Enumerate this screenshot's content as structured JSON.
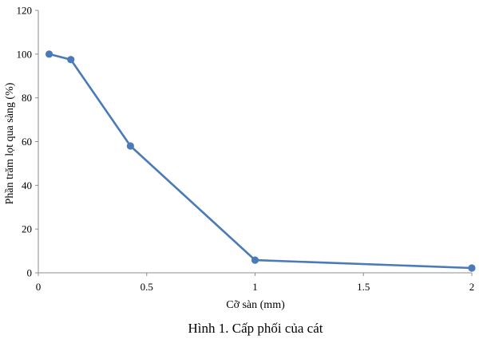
{
  "chart_data": {
    "type": "line",
    "xlabel": "Cỡ sàn (mm)",
    "ylabel": "Phần trăm lọt qua sàng (%)",
    "caption": "Hình 1. Cấp phối của cát",
    "xlim": [
      0,
      2
    ],
    "ylim": [
      0,
      120
    ],
    "x_ticks": [
      0,
      0.5,
      1,
      1.5,
      2
    ],
    "x_tick_labels": [
      "0",
      "0.5",
      "1",
      "1.5",
      "2"
    ],
    "y_ticks": [
      0,
      20,
      40,
      60,
      80,
      100,
      120
    ],
    "y_tick_labels": [
      "0",
      "20",
      "40",
      "60",
      "80",
      "100",
      "120"
    ],
    "grid": false,
    "series": [
      {
        "color": "#4a7ab8",
        "x": [
          0.05,
          0.15,
          0.425,
          1.0,
          2.0
        ],
        "y": [
          100,
          97.5,
          58,
          5.8,
          2.2
        ]
      }
    ]
  }
}
